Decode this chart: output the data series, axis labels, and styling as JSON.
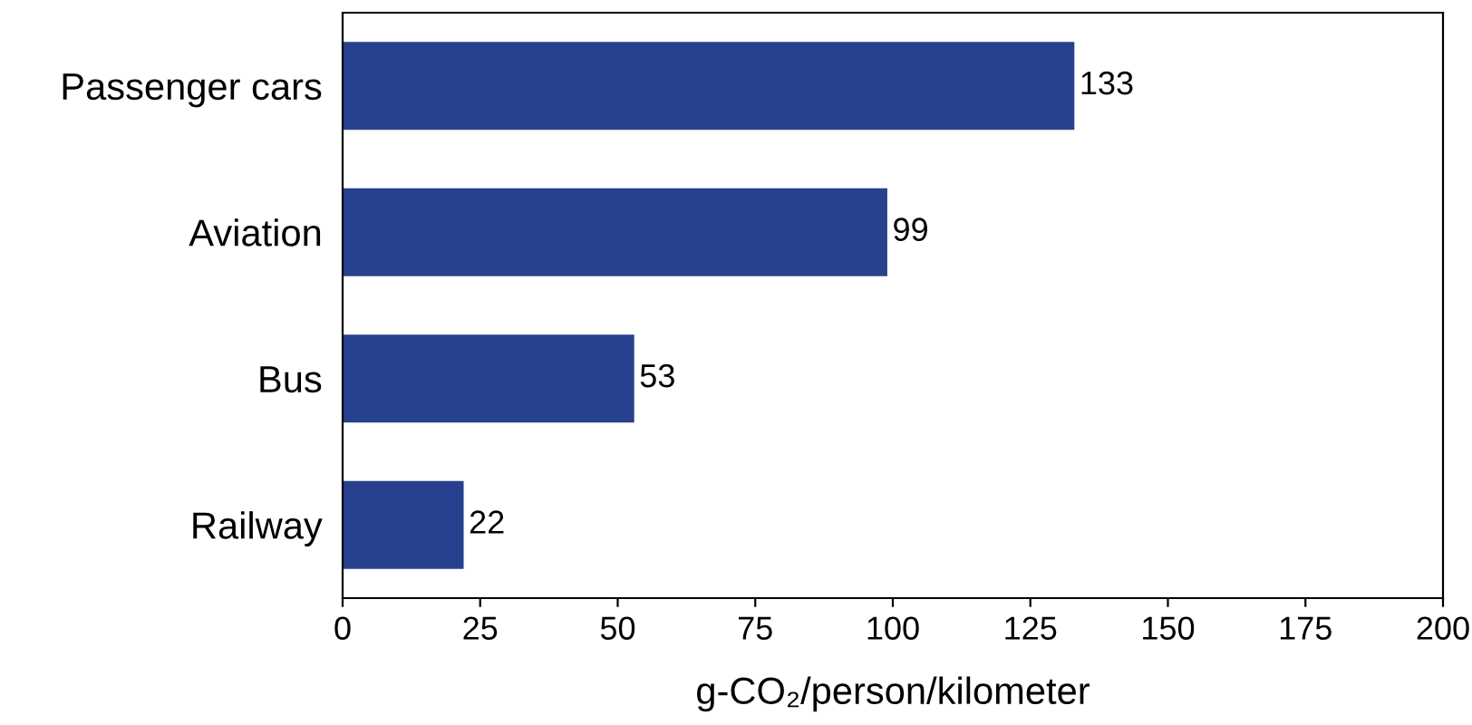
{
  "chart_data": {
    "type": "bar",
    "orientation": "horizontal",
    "categories": [
      "Passenger cars",
      "Aviation",
      "Bus",
      "Railway"
    ],
    "values": [
      133,
      99,
      53,
      22
    ],
    "color": "#27418f",
    "xlabel": "g-CO₂/person/kilometer",
    "xlim": [
      0,
      200
    ],
    "xticks": [
      0,
      25,
      50,
      75,
      100,
      125,
      150,
      175,
      200
    ],
    "data_labels": true,
    "grid": false,
    "legend": false
  }
}
